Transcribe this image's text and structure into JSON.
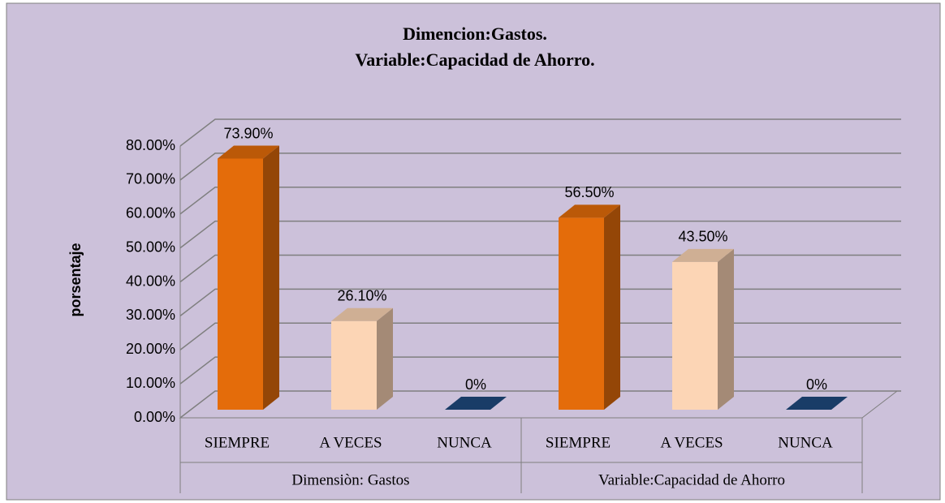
{
  "chart_data": {
    "type": "bar3d",
    "title": [
      "Dimencion:Gastos.",
      "Variable:Capacidad de Ahorro."
    ],
    "ylabel": "porsentaje",
    "categories": [
      "SIEMPRE",
      "A VECES",
      "NUNCA",
      "SIEMPRE",
      "A VECES",
      "NUNCA"
    ],
    "groups": [
      "Dimensiòn: Gastos",
      "Variable:Capacidad de Ahorro"
    ],
    "values": [
      73.9,
      26.1,
      0,
      56.5,
      43.5,
      0
    ],
    "value_labels": [
      "73.90%",
      "26.10%",
      "0%",
      "56.50%",
      "43.50%",
      "0%"
    ],
    "colors": [
      "#E46C0A",
      "#FCD5B5",
      "#1F497D",
      "#E46C0A",
      "#FCD5B5",
      "#1F497D"
    ],
    "ylim": [
      0,
      80
    ],
    "yticks": [
      {
        "value": 0,
        "label": "0.00%"
      },
      {
        "value": 10,
        "label": "10.00%"
      },
      {
        "value": 20,
        "label": "20.00%"
      },
      {
        "value": 30,
        "label": "30.00%"
      },
      {
        "value": 40,
        "label": "40.00%"
      },
      {
        "value": 50,
        "label": "50.00%"
      },
      {
        "value": 60,
        "label": "60.00%"
      },
      {
        "value": 70,
        "label": "70.00%"
      },
      {
        "value": 80,
        "label": "80.00%"
      }
    ],
    "grid": true
  }
}
